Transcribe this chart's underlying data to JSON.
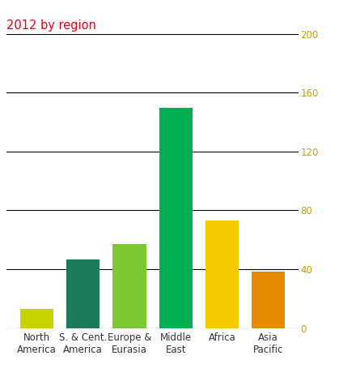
{
  "categories": [
    "North\nAmerica",
    "S. & Cent.\nAmerica",
    "Europe &\nEurasia",
    "Middle\nEast",
    "Africa",
    "Asia\nPacific"
  ],
  "values": [
    13.0,
    46.5,
    57.0,
    150.0,
    73.0,
    38.5
  ],
  "bar_colors": [
    "#c8d400",
    "#1a7a5a",
    "#7cc832",
    "#00b050",
    "#f5c800",
    "#e88a00"
  ],
  "title": "2012 by region",
  "title_color": "#e8001c",
  "ylim": [
    0,
    200
  ],
  "yticks": [
    0,
    40,
    80,
    120,
    160,
    200
  ],
  "ytick_color": "#c8a000",
  "background_color": "#ffffff",
  "grid_color": "#000000",
  "tick_label_fontsize": 8.5,
  "title_fontsize": 10.5
}
